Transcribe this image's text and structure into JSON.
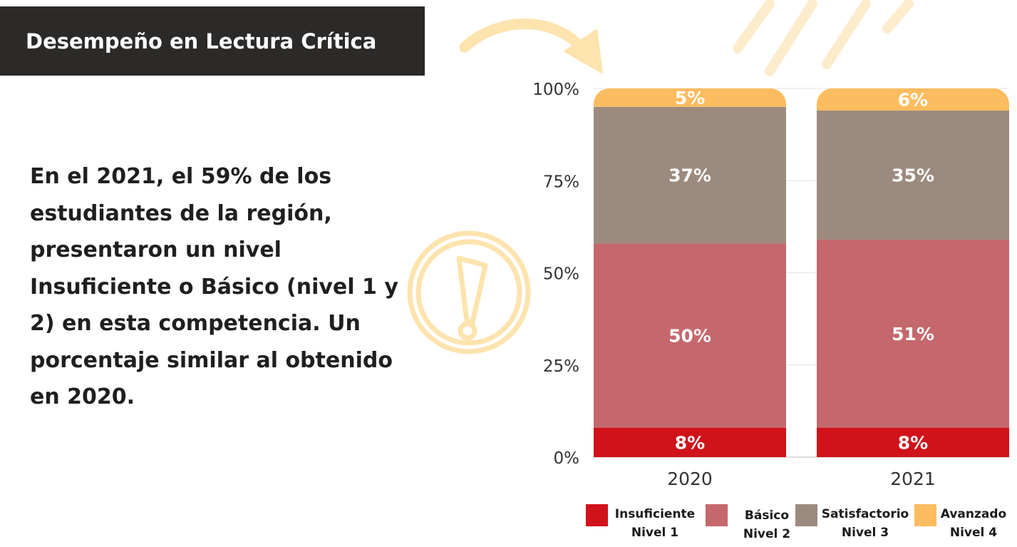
{
  "header": {
    "title": "Desempeño en Lectura Crítica"
  },
  "summary": {
    "text": "En el 2021, el 59% de los estudiantes de la región, presentaron un nivel Insuficiente o Básico (nivel 1 y 2) en esta competencia. Un porcentaje similar al obtenido en 2020."
  },
  "decorations": {
    "arrow_icon": "curved-arrow-icon",
    "warning_icon": "exclamation-circle-icon",
    "accent_color": "#fde3ad"
  },
  "chart_data": {
    "type": "bar",
    "stacked": true,
    "categories": [
      "2020",
      "2021"
    ],
    "ylim": [
      0,
      100
    ],
    "yticks": [
      0,
      25,
      50,
      75,
      100
    ],
    "ytick_labels": [
      "0%",
      "25%",
      "50%",
      "75%",
      "100%"
    ],
    "grid": true,
    "legend_position": "bottom",
    "series": [
      {
        "name": "Insuficiente",
        "sublabel": "Nivel 1",
        "color": "#d0121b",
        "values": [
          8,
          8
        ],
        "labels": [
          "8%",
          "8%"
        ]
      },
      {
        "name": "Básico",
        "sublabel": "Nivel 2",
        "color": "#c4686d",
        "values": [
          50,
          51
        ],
        "labels": [
          "50%",
          "51%"
        ]
      },
      {
        "name": "Satisfactorio",
        "sublabel": "Nivel 3",
        "color": "#9d8a7e",
        "values": [
          37,
          35
        ],
        "labels": [
          "37%",
          "35%"
        ]
      },
      {
        "name": "Avanzado",
        "sublabel": "Nivel 4",
        "color": "#fdbc5f",
        "values": [
          5,
          6
        ],
        "labels": [
          "5%",
          "6%"
        ]
      }
    ]
  }
}
